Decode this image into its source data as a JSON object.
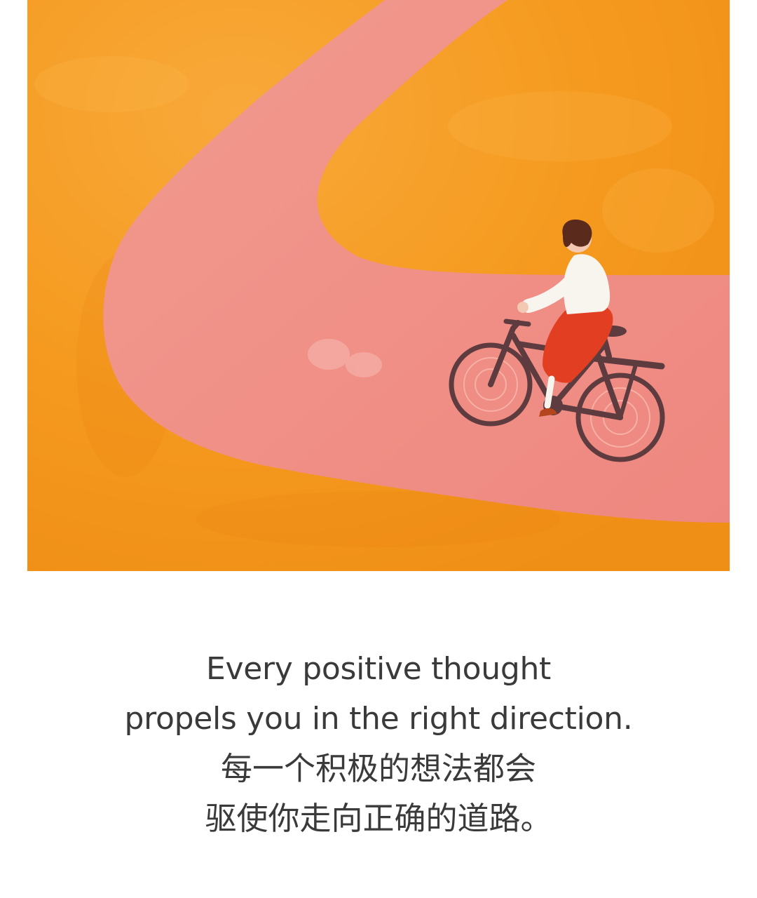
{
  "illustration": {
    "subject": "person riding a bicycle along a winding pink path",
    "colors": {
      "background_orange": "#F59A1F",
      "background_orange_light": "#F7AC35",
      "path_pink": "#F08E86",
      "shirt_white": "#F8F4EE",
      "skirt_red": "#E23F22",
      "hair_brown": "#5A2A1C",
      "bicycle": "#5D3B3E"
    }
  },
  "caption": {
    "line1": "Every positive thought",
    "line2": "propels you in the right direction.",
    "line3": "每一个积极的想法都会",
    "line4": "驱使你走向正确的道路。"
  }
}
